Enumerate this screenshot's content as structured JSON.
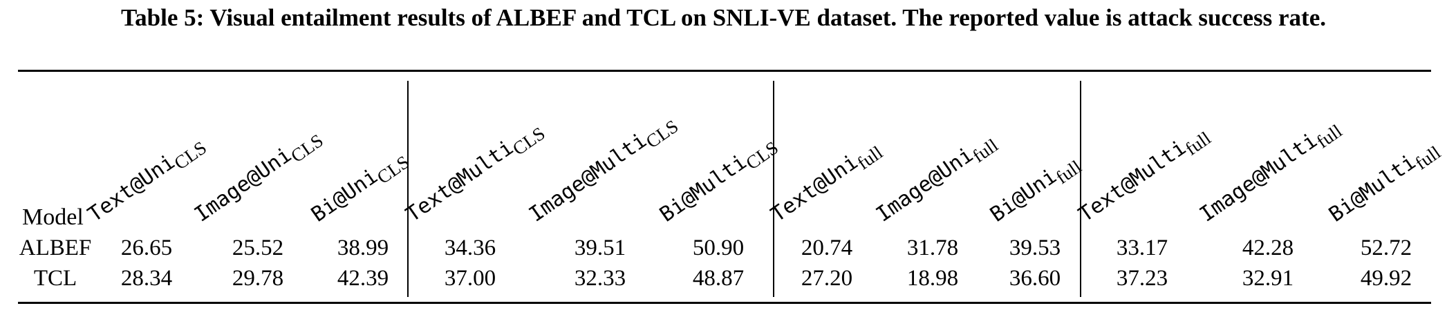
{
  "caption": "Table 5: Visual entailment results of ALBEF and TCL on SNLI-VE dataset. The reported value is attack success rate.",
  "table": {
    "model_header": "Model",
    "columns": [
      {
        "base": "Text@Uni",
        "sub": "CLS"
      },
      {
        "base": "Image@Uni",
        "sub": "CLS"
      },
      {
        "base": "Bi@Uni",
        "sub": "CLS"
      },
      {
        "base": "Text@Multi",
        "sub": "CLS"
      },
      {
        "base": "Image@Multi",
        "sub": "CLS"
      },
      {
        "base": "Bi@Multi",
        "sub": "CLS"
      },
      {
        "base": "Text@Uni",
        "sub": "full"
      },
      {
        "base": "Image@Uni",
        "sub": "full"
      },
      {
        "base": "Bi@Uni",
        "sub": "full"
      },
      {
        "base": "Text@Multi",
        "sub": "full"
      },
      {
        "base": "Image@Multi",
        "sub": "full"
      },
      {
        "base": "Bi@Multi",
        "sub": "full"
      }
    ],
    "rows": [
      {
        "model": "ALBEF",
        "values": [
          "26.65",
          "25.52",
          "38.99",
          "34.36",
          "39.51",
          "50.90",
          "20.74",
          "31.78",
          "39.53",
          "33.17",
          "42.28",
          "52.72"
        ]
      },
      {
        "model": "TCL",
        "values": [
          "28.34",
          "29.78",
          "42.39",
          "37.00",
          "32.33",
          "48.87",
          "27.20",
          "18.98",
          "36.60",
          "37.23",
          "32.91",
          "49.92"
        ]
      }
    ]
  }
}
